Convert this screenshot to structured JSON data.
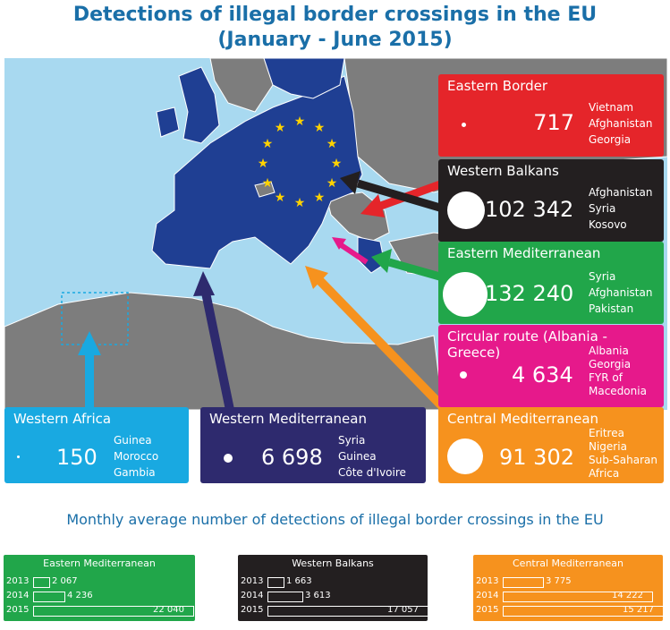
{
  "title": {
    "line1": "Detections of illegal border crossings in the EU",
    "line2": "(January - June 2015)"
  },
  "colors": {
    "title": "#1a6fa8",
    "eastern_border": "#e5252a",
    "western_balkans": "#231f20",
    "eastern_mediterranean": "#21a64a",
    "circular_route": "#e6198b",
    "central_mediterranean": "#f6921e",
    "western_mediterranean": "#2e2a6e",
    "western_africa": "#19a9e1",
    "sea": "#a8d9f0",
    "land": "#7d7d7d",
    "eu": "#1f3f93",
    "star": "#ffd200"
  },
  "routes": [
    {
      "name": "Eastern Border",
      "value": "717",
      "countries": [
        "Vietnam",
        "Afghanistan",
        "Georgia"
      ]
    },
    {
      "name": "Western Balkans",
      "value": "102 342",
      "countries": [
        "Afghanistan",
        "Syria",
        "Kosovo"
      ]
    },
    {
      "name": "Eastern Mediterranean",
      "value": "132 240",
      "countries": [
        "Syria",
        "Afghanistan",
        "Pakistan"
      ]
    },
    {
      "name": "Circular route (Albania - Greece)",
      "value": "4 634",
      "countries": [
        "Albania",
        "Georgia",
        "FYR of",
        "Macedonia"
      ]
    },
    {
      "name": "Central Mediterranean",
      "value": "91 302",
      "countries": [
        "Eritrea",
        "Nigeria",
        "Sub-Saharan",
        "Africa"
      ]
    },
    {
      "name": "Western Mediterranean",
      "value": "6 698",
      "countries": [
        "Syria",
        "Guinea",
        "Côte d'Ivoire"
      ]
    },
    {
      "name": "Western Africa",
      "value": "150",
      "countries": [
        "Guinea",
        "Morocco",
        "Gambia"
      ]
    }
  ],
  "monthly": {
    "subtitle": "Monthly average number of detections of illegal border crossings in the EU",
    "panels": [
      {
        "name": "Eastern Mediterranean",
        "rows": [
          {
            "year": "2013",
            "label": "2 067",
            "value": 2067
          },
          {
            "year": "2014",
            "label": "4 236",
            "value": 4236
          },
          {
            "year": "2015",
            "label": "22 040",
            "value": 22040
          }
        ]
      },
      {
        "name": "Western Balkans",
        "rows": [
          {
            "year": "2013",
            "label": "1 663",
            "value": 1663
          },
          {
            "year": "2014",
            "label": "3 613",
            "value": 3613
          },
          {
            "year": "2015",
            "label": "17 057",
            "value": 17057
          }
        ]
      },
      {
        "name": "Central Mediterranean",
        "rows": [
          {
            "year": "2013",
            "label": "3 775",
            "value": 3775
          },
          {
            "year": "2014",
            "label": "14 222",
            "value": 14222
          },
          {
            "year": "2015",
            "label": "15 217",
            "value": 15217
          }
        ]
      }
    ]
  }
}
